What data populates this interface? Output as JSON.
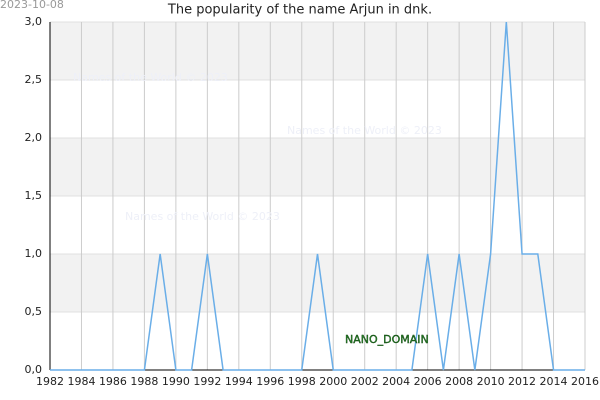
{
  "date_stamp": "2023-10-08",
  "watermarks": [
    "Names of the World © 2023",
    "Names of the World © 2023",
    "Names of the World © 2023"
  ],
  "domain_label": "NANO_DOMAIN",
  "chart_data": {
    "type": "line",
    "title": "The popularity of the name Arjun in dnk.",
    "x": [
      1982,
      1983,
      1984,
      1985,
      1986,
      1987,
      1988,
      1989,
      1990,
      1991,
      1992,
      1993,
      1994,
      1995,
      1996,
      1997,
      1998,
      1999,
      2000,
      2001,
      2002,
      2003,
      2004,
      2005,
      2006,
      2007,
      2008,
      2009,
      2010,
      2011,
      2012,
      2013,
      2014,
      2015,
      2016
    ],
    "values": [
      0,
      0,
      0,
      0,
      0,
      0,
      0,
      1,
      0,
      0,
      1,
      0,
      0,
      0,
      0,
      0,
      0,
      1,
      0,
      0,
      0,
      0,
      0,
      0,
      1,
      0,
      1,
      0,
      1,
      3,
      1,
      1,
      0,
      0,
      0
    ],
    "color": "#6aaee8",
    "xlim": [
      1982,
      2016
    ],
    "xticks": [
      1982,
      1984,
      1986,
      1988,
      1990,
      1992,
      1994,
      1996,
      1998,
      2000,
      2002,
      2004,
      2006,
      2008,
      2010,
      2012,
      2014,
      2016
    ],
    "ylim": [
      0,
      3
    ],
    "yticks": [
      {
        "value": 0,
        "label": "0,0"
      },
      {
        "value": 0.5,
        "label": "0,5"
      },
      {
        "value": 1,
        "label": "1,0"
      },
      {
        "value": 1.5,
        "label": "1,5"
      },
      {
        "value": 2,
        "label": "2,0"
      },
      {
        "value": 2.5,
        "label": "2,5"
      },
      {
        "value": 3,
        "label": "3,0"
      }
    ],
    "grid": true
  }
}
